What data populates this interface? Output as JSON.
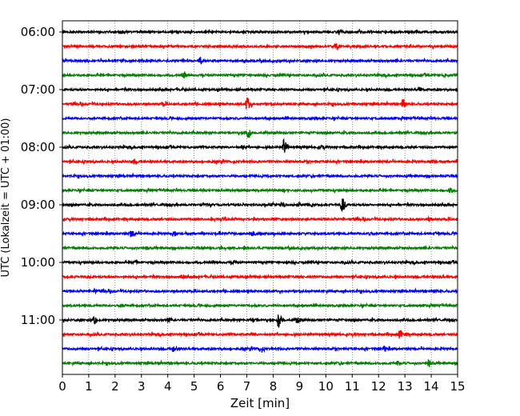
{
  "chart_data": {
    "type": "line",
    "title": "",
    "xlabel": "Zeit  [min]",
    "ylabel": "UTC (Lokalzeit = UTC + 01:00)",
    "xlim": [
      0,
      15
    ],
    "xticks": [
      "0",
      "1",
      "2",
      "3",
      "4",
      "5",
      "6",
      "7",
      "8",
      "9",
      "10",
      "11",
      "12",
      "13",
      "14",
      "15"
    ],
    "yticks": [
      "06:00",
      "07:00",
      "08:00",
      "09:00",
      "10:00",
      "11:00"
    ],
    "grid": "vertical dotted",
    "colors": [
      "#000000",
      "#ff0000",
      "#0000ff",
      "#008000"
    ],
    "trace_minutes_per_line": 15,
    "traces": [
      {
        "start": "06:00",
        "color": "#000000",
        "events": [
          [
            10.5,
            0.35
          ],
          [
            11.3,
            0.15
          ],
          [
            6.9,
            0.15
          ]
        ]
      },
      {
        "start": "06:15",
        "color": "#ff0000",
        "events": [
          [
            10.4,
            0.3
          ]
        ]
      },
      {
        "start": "06:30",
        "color": "#0000ff",
        "events": [
          [
            5.2,
            0.45
          ]
        ]
      },
      {
        "start": "06:45",
        "color": "#008000",
        "events": [
          [
            4.6,
            0.3
          ],
          [
            14.5,
            0.15
          ]
        ]
      },
      {
        "start": "07:00",
        "color": "#000000",
        "events": [
          [
            13.5,
            0.3
          ]
        ]
      },
      {
        "start": "07:15",
        "color": "#ff0000",
        "events": [
          [
            7.0,
            0.95
          ],
          [
            12.9,
            0.7
          ],
          [
            3.8,
            0.15
          ]
        ]
      },
      {
        "start": "07:30",
        "color": "#0000ff",
        "events": []
      },
      {
        "start": "07:45",
        "color": "#008000",
        "events": [
          [
            7.0,
            0.9
          ]
        ]
      },
      {
        "start": "08:00",
        "color": "#000000",
        "events": [
          [
            8.4,
            1.0
          ],
          [
            6.8,
            0.2
          ],
          [
            9.8,
            0.15
          ]
        ]
      },
      {
        "start": "08:15",
        "color": "#ff0000",
        "events": [
          [
            2.7,
            0.3
          ],
          [
            14.0,
            0.2
          ]
        ]
      },
      {
        "start": "08:30",
        "color": "#0000ff",
        "events": []
      },
      {
        "start": "08:45",
        "color": "#008000",
        "events": [
          [
            14.7,
            0.25
          ]
        ]
      },
      {
        "start": "09:00",
        "color": "#000000",
        "events": [
          [
            10.6,
            1.0
          ],
          [
            8.3,
            0.2
          ],
          [
            9.0,
            0.15
          ]
        ]
      },
      {
        "start": "09:15",
        "color": "#ff0000",
        "events": [
          [
            13.9,
            0.25
          ],
          [
            6.0,
            0.15
          ]
        ]
      },
      {
        "start": "09:30",
        "color": "#0000ff",
        "events": [
          [
            2.6,
            0.4
          ],
          [
            4.2,
            0.3
          ],
          [
            7.2,
            0.25
          ],
          [
            11.6,
            0.2
          ],
          [
            14.2,
            0.2
          ]
        ]
      },
      {
        "start": "09:45",
        "color": "#008000",
        "events": [
          [
            3.2,
            0.15
          ],
          [
            6.9,
            0.2
          ]
        ]
      },
      {
        "start": "10:00",
        "color": "#000000",
        "events": [
          [
            2.7,
            0.2
          ],
          [
            6.5,
            0.15
          ]
        ]
      },
      {
        "start": "10:15",
        "color": "#ff0000",
        "events": [
          [
            4.5,
            0.2
          ],
          [
            14.3,
            0.15
          ]
        ]
      },
      {
        "start": "10:30",
        "color": "#0000ff",
        "events": [
          [
            1.2,
            0.25
          ],
          [
            14.1,
            0.2
          ]
        ]
      },
      {
        "start": "10:45",
        "color": "#008000",
        "events": [
          [
            2.2,
            0.2
          ]
        ]
      },
      {
        "start": "11:00",
        "color": "#000000",
        "events": [
          [
            8.2,
            1.0
          ],
          [
            8.9,
            0.45
          ],
          [
            1.2,
            0.45
          ],
          [
            4.0,
            0.2
          ],
          [
            7.2,
            0.2
          ]
        ]
      },
      {
        "start": "11:15",
        "color": "#ff0000",
        "events": [
          [
            12.8,
            0.55
          ],
          [
            7.2,
            0.15
          ]
        ]
      },
      {
        "start": "11:30",
        "color": "#0000ff",
        "events": [
          [
            4.2,
            0.35
          ],
          [
            7.5,
            0.25
          ],
          [
            12.2,
            0.25
          ]
        ]
      },
      {
        "start": "11:45",
        "color": "#008000",
        "events": [
          [
            13.9,
            0.45
          ],
          [
            12.7,
            0.2
          ]
        ]
      }
    ]
  }
}
